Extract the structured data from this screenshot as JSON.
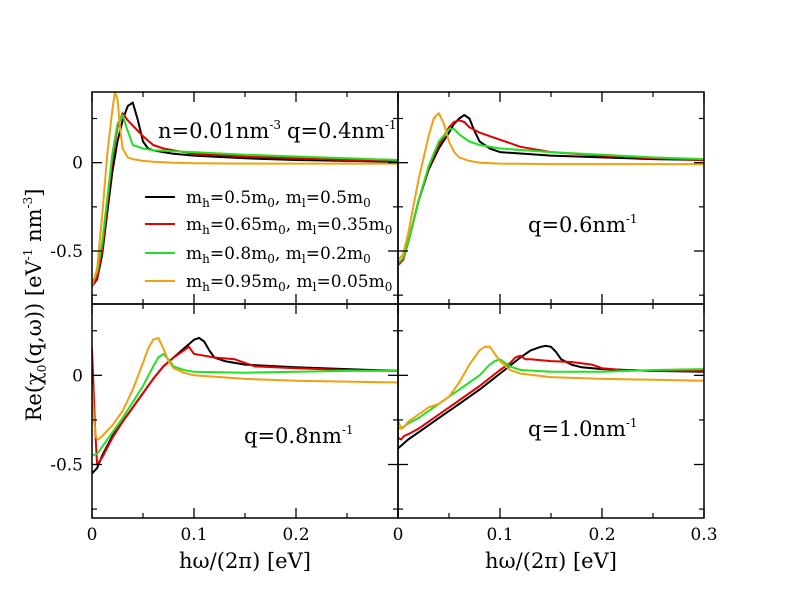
{
  "chart_data": {
    "type": "line",
    "grid": false,
    "ylabel_parts": {
      "a": "Re(χ",
      "b": "0",
      "c": "(q,ω)) [eV",
      "d": "-1",
      "e": " nm",
      "f": "-3",
      "g": "]"
    },
    "xlabel": "hω/(2π) [eV]",
    "xlim": [
      0,
      0.3
    ],
    "ylim": [
      -0.8,
      0.4
    ],
    "xticks": [
      "0",
      "0.1",
      "0.2",
      "0.3"
    ],
    "yticks": [
      "-0.5",
      "0"
    ],
    "colors": {
      "black": "#000000",
      "red": "#e00000",
      "green": "#22e022",
      "orange": "#f0a010"
    },
    "legend": {
      "entries": [
        {
          "mh": "0.5",
          "ml": "0.5"
        },
        {
          "mh": "0.65",
          "ml": "0.35"
        },
        {
          "mh": "0.8",
          "ml": "0.2"
        },
        {
          "mh": "0.95",
          "ml": "0.05"
        }
      ]
    },
    "panels": [
      {
        "id": "a",
        "label_n": "n=0.01nm",
        "label_n_exp": "-3",
        "label_q": "q=0.4nm",
        "label_q_exp": "-1",
        "series": [
          {
            "color": "black",
            "x": [
              0,
              0.005,
              0.01,
              0.015,
              0.02,
              0.025,
              0.03,
              0.035,
              0.04,
              0.045,
              0.05,
              0.055,
              0.06,
              0.07,
              0.08,
              0.1,
              0.15,
              0.2,
              0.25,
              0.3
            ],
            "y": [
              -0.7,
              -0.66,
              -0.52,
              -0.28,
              -0.05,
              0.12,
              0.24,
              0.32,
              0.34,
              0.24,
              0.12,
              0.08,
              0.07,
              0.06,
              0.05,
              0.04,
              0.025,
              0.015,
              0.01,
              0.005
            ]
          },
          {
            "color": "red",
            "x": [
              0,
              0.005,
              0.01,
              0.015,
              0.02,
              0.025,
              0.03,
              0.035,
              0.04,
              0.045,
              0.05,
              0.06,
              0.07,
              0.08,
              0.1,
              0.15,
              0.2,
              0.25,
              0.3
            ],
            "y": [
              -0.7,
              -0.65,
              -0.5,
              -0.24,
              0.02,
              0.2,
              0.28,
              0.24,
              0.21,
              0.18,
              0.15,
              0.1,
              0.08,
              0.07,
              0.05,
              0.035,
              0.025,
              0.015,
              0.01
            ]
          },
          {
            "color": "green",
            "x": [
              0,
              0.005,
              0.01,
              0.015,
              0.02,
              0.025,
              0.03,
              0.035,
              0.04,
              0.05,
              0.06,
              0.08,
              0.1,
              0.15,
              0.2,
              0.25,
              0.3
            ],
            "y": [
              -0.68,
              -0.62,
              -0.45,
              -0.2,
              0.05,
              0.22,
              0.27,
              0.18,
              0.1,
              0.08,
              0.07,
              0.065,
              0.06,
              0.045,
              0.035,
              0.025,
              0.015
            ]
          },
          {
            "color": "orange",
            "x": [
              0,
              0.005,
              0.01,
              0.015,
              0.02,
              0.0225,
              0.025,
              0.0275,
              0.03,
              0.035,
              0.04,
              0.05,
              0.06,
              0.08,
              0.1,
              0.15,
              0.2,
              0.25,
              0.3
            ],
            "y": [
              -0.7,
              -0.6,
              -0.3,
              0.05,
              0.3,
              0.4,
              0.36,
              0.2,
              0.08,
              0.03,
              0.02,
              0.01,
              0.005,
              0.0,
              -0.003,
              -0.005,
              -0.005,
              -0.005,
              -0.005
            ]
          }
        ]
      },
      {
        "id": "b",
        "label_q": "q=0.6nm",
        "label_q_exp": "-1",
        "series": [
          {
            "color": "black",
            "x": [
              0,
              0.005,
              0.01,
              0.02,
              0.03,
              0.04,
              0.05,
              0.055,
              0.06,
              0.065,
              0.07,
              0.075,
              0.08,
              0.09,
              0.1,
              0.15,
              0.2,
              0.25,
              0.3
            ],
            "y": [
              -0.58,
              -0.55,
              -0.45,
              -0.22,
              -0.04,
              0.08,
              0.17,
              0.22,
              0.25,
              0.27,
              0.25,
              0.18,
              0.12,
              0.08,
              0.06,
              0.04,
              0.03,
              0.02,
              0.015
            ]
          },
          {
            "color": "red",
            "x": [
              0,
              0.005,
              0.01,
              0.02,
              0.03,
              0.04,
              0.05,
              0.055,
              0.06,
              0.065,
              0.07,
              0.08,
              0.09,
              0.1,
              0.11,
              0.12,
              0.15,
              0.2,
              0.25,
              0.3
            ],
            "y": [
              -0.58,
              -0.55,
              -0.45,
              -0.22,
              -0.03,
              0.1,
              0.2,
              0.23,
              0.24,
              0.23,
              0.2,
              0.17,
              0.15,
              0.13,
              0.11,
              0.09,
              0.06,
              0.04,
              0.025,
              0.015
            ]
          },
          {
            "color": "green",
            "x": [
              0,
              0.005,
              0.01,
              0.02,
              0.03,
              0.04,
              0.05,
              0.055,
              0.06,
              0.07,
              0.08,
              0.1,
              0.15,
              0.2,
              0.25,
              0.3
            ],
            "y": [
              -0.57,
              -0.54,
              -0.45,
              -0.22,
              -0.02,
              0.12,
              0.19,
              0.19,
              0.16,
              0.12,
              0.1,
              0.08,
              0.06,
              0.045,
              0.03,
              0.02
            ]
          },
          {
            "color": "orange",
            "x": [
              0,
              0.005,
              0.01,
              0.02,
              0.03,
              0.035,
              0.04,
              0.045,
              0.05,
              0.055,
              0.06,
              0.07,
              0.08,
              0.1,
              0.15,
              0.2,
              0.25,
              0.3
            ],
            "y": [
              -0.55,
              -0.52,
              -0.4,
              -0.1,
              0.15,
              0.25,
              0.28,
              0.22,
              0.12,
              0.06,
              0.03,
              0.01,
              0.0,
              -0.005,
              -0.008,
              -0.008,
              -0.008,
              -0.008
            ]
          }
        ]
      },
      {
        "id": "c",
        "label_q": "q=0.8nm",
        "label_q_exp": "-1",
        "series": [
          {
            "color": "black",
            "x": [
              0,
              0.005,
              0.01,
              0.02,
              0.03,
              0.04,
              0.05,
              0.06,
              0.07,
              0.08,
              0.09,
              0.1,
              0.105,
              0.11,
              0.115,
              0.12,
              0.13,
              0.15,
              0.2,
              0.25,
              0.3
            ],
            "y": [
              -0.55,
              -0.52,
              -0.45,
              -0.34,
              -0.26,
              -0.18,
              -0.1,
              -0.02,
              0.05,
              0.1,
              0.15,
              0.2,
              0.21,
              0.19,
              0.14,
              0.1,
              0.08,
              0.06,
              0.045,
              0.035,
              0.025
            ]
          },
          {
            "color": "red",
            "x": [
              0,
              0.003,
              0.005,
              0.01,
              0.02,
              0.03,
              0.04,
              0.05,
              0.06,
              0.07,
              0.08,
              0.09,
              0.095,
              0.1,
              0.11,
              0.12,
              0.14,
              0.15,
              0.16,
              0.2,
              0.25,
              0.3
            ],
            "y": [
              0.15,
              -0.3,
              -0.5,
              -0.46,
              -0.35,
              -0.26,
              -0.18,
              -0.1,
              -0.02,
              0.05,
              0.1,
              0.14,
              0.16,
              0.12,
              0.11,
              0.1,
              0.09,
              0.07,
              0.05,
              0.04,
              0.03,
              0.025
            ]
          },
          {
            "color": "green",
            "x": [
              0,
              0.005,
              0.01,
              0.02,
              0.03,
              0.04,
              0.05,
              0.06,
              0.065,
              0.07,
              0.075,
              0.08,
              0.09,
              0.1,
              0.15,
              0.2,
              0.25,
              0.3
            ],
            "y": [
              -0.45,
              -0.44,
              -0.4,
              -0.32,
              -0.24,
              -0.15,
              -0.06,
              0.05,
              0.1,
              0.12,
              0.09,
              0.05,
              0.03,
              0.02,
              0.015,
              0.02,
              0.025,
              0.025
            ]
          },
          {
            "color": "orange",
            "x": [
              0,
              0.002,
              0.004,
              0.006,
              0.01,
              0.02,
              0.03,
              0.04,
              0.05,
              0.055,
              0.06,
              0.065,
              0.07,
              0.075,
              0.08,
              0.09,
              0.1,
              0.15,
              0.2,
              0.25,
              0.3
            ],
            "y": [
              -0.05,
              -0.25,
              -0.35,
              -0.36,
              -0.34,
              -0.28,
              -0.2,
              -0.08,
              0.07,
              0.15,
              0.2,
              0.21,
              0.15,
              0.08,
              0.04,
              0.015,
              0.0,
              -0.02,
              -0.03,
              -0.035,
              -0.04
            ]
          }
        ]
      },
      {
        "id": "d",
        "label_q": "q=1.0nm",
        "label_q_exp": "-1",
        "series": [
          {
            "color": "black",
            "x": [
              0,
              0.01,
              0.02,
              0.04,
              0.06,
              0.08,
              0.1,
              0.12,
              0.13,
              0.14,
              0.145,
              0.15,
              0.155,
              0.16,
              0.17,
              0.18,
              0.2,
              0.25,
              0.3
            ],
            "y": [
              -0.41,
              -0.36,
              -0.32,
              -0.24,
              -0.16,
              -0.08,
              0.01,
              0.1,
              0.14,
              0.16,
              0.165,
              0.16,
              0.13,
              0.09,
              0.06,
              0.045,
              0.035,
              0.025,
              0.02
            ]
          },
          {
            "color": "red",
            "x": [
              0,
              0.003,
              0.006,
              0.01,
              0.02,
              0.04,
              0.06,
              0.08,
              0.1,
              0.11,
              0.115,
              0.12,
              0.125,
              0.13,
              0.15,
              0.17,
              0.19,
              0.2,
              0.22,
              0.25,
              0.3
            ],
            "y": [
              -0.35,
              -0.36,
              -0.34,
              -0.33,
              -0.3,
              -0.22,
              -0.14,
              -0.06,
              0.03,
              0.07,
              0.1,
              0.11,
              0.09,
              0.09,
              0.08,
              0.075,
              0.06,
              0.04,
              0.03,
              0.025,
              0.025
            ]
          },
          {
            "color": "green",
            "x": [
              0,
              0.005,
              0.01,
              0.02,
              0.04,
              0.06,
              0.07,
              0.08,
              0.09,
              0.095,
              0.1,
              0.105,
              0.11,
              0.12,
              0.15,
              0.2,
              0.25,
              0.3
            ],
            "y": [
              -0.3,
              -0.29,
              -0.27,
              -0.24,
              -0.16,
              -0.08,
              -0.04,
              0.0,
              0.06,
              0.08,
              0.09,
              0.07,
              0.05,
              0.03,
              0.02,
              0.02,
              0.03,
              0.035
            ]
          },
          {
            "color": "orange",
            "x": [
              0,
              0.003,
              0.006,
              0.01,
              0.02,
              0.03,
              0.04,
              0.05,
              0.06,
              0.07,
              0.08,
              0.085,
              0.09,
              0.095,
              0.1,
              0.11,
              0.12,
              0.15,
              0.2,
              0.25,
              0.3
            ],
            "y": [
              -0.25,
              -0.3,
              -0.29,
              -0.26,
              -0.22,
              -0.18,
              -0.16,
              -0.12,
              -0.04,
              0.06,
              0.14,
              0.16,
              0.16,
              0.12,
              0.08,
              0.03,
              0.01,
              -0.01,
              -0.02,
              -0.025,
              -0.03
            ]
          }
        ]
      }
    ]
  }
}
